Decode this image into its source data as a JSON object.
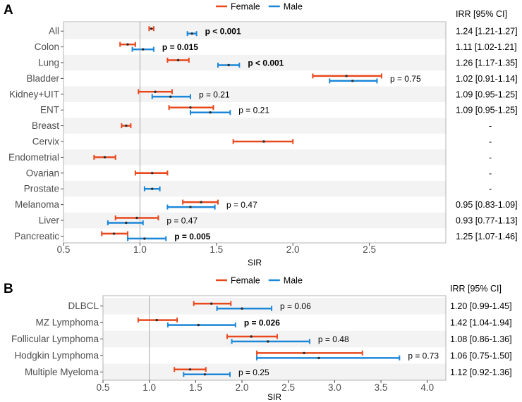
{
  "chart_data": [
    {
      "type": "forest",
      "panel": "A",
      "xlabel": "SIR",
      "xlim": [
        0.5,
        3.0
      ],
      "xticks": [
        0.5,
        1.0,
        1.5,
        2.0,
        2.5
      ],
      "reference_line": 1.0,
      "legend": [
        {
          "name": "Female",
          "color": "#e8481c"
        },
        {
          "name": "Male",
          "color": "#1c87d8"
        }
      ],
      "irr_header": "IRR [95% CI]",
      "rows": [
        {
          "label": "All",
          "female": [
            1.075,
            1.06,
            1.09
          ],
          "male": [
            1.34,
            1.31,
            1.37
          ],
          "pvalue": "p < 0.001",
          "p_bold": true,
          "irr": "1.24 [1.21-1.27]"
        },
        {
          "label": "Colon",
          "female": [
            0.92,
            0.87,
            0.97
          ],
          "male": [
            1.02,
            0.95,
            1.09
          ],
          "pvalue": "p = 0.015",
          "p_bold": true,
          "irr": "1.11 [1.02-1.21]"
        },
        {
          "label": "Lung",
          "female": [
            1.25,
            1.18,
            1.32
          ],
          "male": [
            1.58,
            1.51,
            1.65
          ],
          "pvalue": "p < 0.001",
          "p_bold": true,
          "irr": "1.26 [1.17-1.35]"
        },
        {
          "label": "Bladder",
          "female": [
            2.35,
            2.13,
            2.58
          ],
          "male": [
            2.39,
            2.24,
            2.55
          ],
          "pvalue": "p = 0.75",
          "p_bold": false,
          "irr": "1.02 [0.91-1.14]"
        },
        {
          "label": "Kidney+UIT",
          "female": [
            1.1,
            0.99,
            1.21
          ],
          "male": [
            1.2,
            1.08,
            1.33
          ],
          "pvalue": "p = 0.21",
          "p_bold": false,
          "irr": "1.09 [0.95-1.25]"
        },
        {
          "label": "ENT",
          "female": [
            1.33,
            1.19,
            1.48
          ],
          "male": [
            1.46,
            1.33,
            1.59
          ],
          "pvalue": "p = 0.21",
          "p_bold": false,
          "irr": "1.09 [0.95-1.25]"
        },
        {
          "label": "Breast",
          "female": [
            0.91,
            0.88,
            0.94
          ],
          "male": null,
          "pvalue": "",
          "p_bold": false,
          "irr": "-"
        },
        {
          "label": "Cervix",
          "female": [
            1.81,
            1.61,
            2.0
          ],
          "male": null,
          "pvalue": "",
          "p_bold": false,
          "irr": "-"
        },
        {
          "label": "Endometrial",
          "female": [
            0.77,
            0.7,
            0.84
          ],
          "male": null,
          "pvalue": "",
          "p_bold": false,
          "irr": "-"
        },
        {
          "label": "Ovarian",
          "female": [
            1.08,
            0.97,
            1.18
          ],
          "male": null,
          "pvalue": "",
          "p_bold": false,
          "irr": "-"
        },
        {
          "label": "Prostate",
          "female": null,
          "male": [
            1.08,
            1.03,
            1.13
          ],
          "pvalue": "",
          "p_bold": false,
          "irr": "-"
        },
        {
          "label": "Melanoma",
          "female": [
            1.4,
            1.28,
            1.51
          ],
          "male": [
            1.33,
            1.18,
            1.49
          ],
          "pvalue": "p = 0.47",
          "p_bold": false,
          "irr": "0.95 [0.83-1.09]"
        },
        {
          "label": "Liver",
          "female": [
            0.98,
            0.84,
            1.12
          ],
          "male": [
            0.91,
            0.79,
            1.02
          ],
          "pvalue": "p = 0.47",
          "p_bold": false,
          "irr": "0.93 [0.77-1.13]"
        },
        {
          "label": "Pancreatic",
          "female": [
            0.83,
            0.75,
            0.92
          ],
          "male": [
            1.03,
            0.92,
            1.17
          ],
          "pvalue": "p = 0.005",
          "p_bold": true,
          "irr": "1.25 [1.07-1.46]"
        }
      ]
    },
    {
      "type": "forest",
      "panel": "B",
      "xlabel": "SIR",
      "xlim": [
        0.5,
        4.2
      ],
      "xticks": [
        0.5,
        1.0,
        1.5,
        2.0,
        2.5,
        3.0,
        3.5,
        4.0
      ],
      "reference_line": 1.0,
      "legend": [
        {
          "name": "Female",
          "color": "#e8481c"
        },
        {
          "name": "Male",
          "color": "#1c87d8"
        }
      ],
      "irr_header": "IRR [95% CI]",
      "rows": [
        {
          "label": "DLBCL",
          "female": [
            1.67,
            1.48,
            1.88
          ],
          "male": [
            2.0,
            1.73,
            2.32
          ],
          "pvalue": "p = 0.06",
          "p_bold": false,
          "irr": "1.20 [0.99-1.45]"
        },
        {
          "label": "MZ Lymphoma",
          "female": [
            1.08,
            0.88,
            1.3
          ],
          "male": [
            1.53,
            1.2,
            1.93
          ],
          "pvalue": "p = 0.026",
          "p_bold": true,
          "irr": "1.42 [1.04-1.94]"
        },
        {
          "label": "Follicular Lymphoma",
          "female": [
            2.1,
            1.84,
            2.38
          ],
          "male": [
            2.28,
            1.89,
            2.73
          ],
          "pvalue": "p = 0.48",
          "p_bold": false,
          "irr": "1.08 [0.86-1.36]"
        },
        {
          "label": "Hodgkin Lymphoma",
          "female": [
            2.67,
            2.16,
            3.3
          ],
          "male": [
            2.83,
            2.16,
            3.7
          ],
          "pvalue": "p = 0.73",
          "p_bold": false,
          "irr": "1.06 [0.75-1.50]"
        },
        {
          "label": "Multiple Myeloma",
          "female": [
            1.44,
            1.27,
            1.61
          ],
          "male": [
            1.6,
            1.37,
            1.87
          ],
          "pvalue": "p = 0.25",
          "p_bold": false,
          "irr": "1.12 [0.92-1.36]"
        }
      ]
    }
  ]
}
